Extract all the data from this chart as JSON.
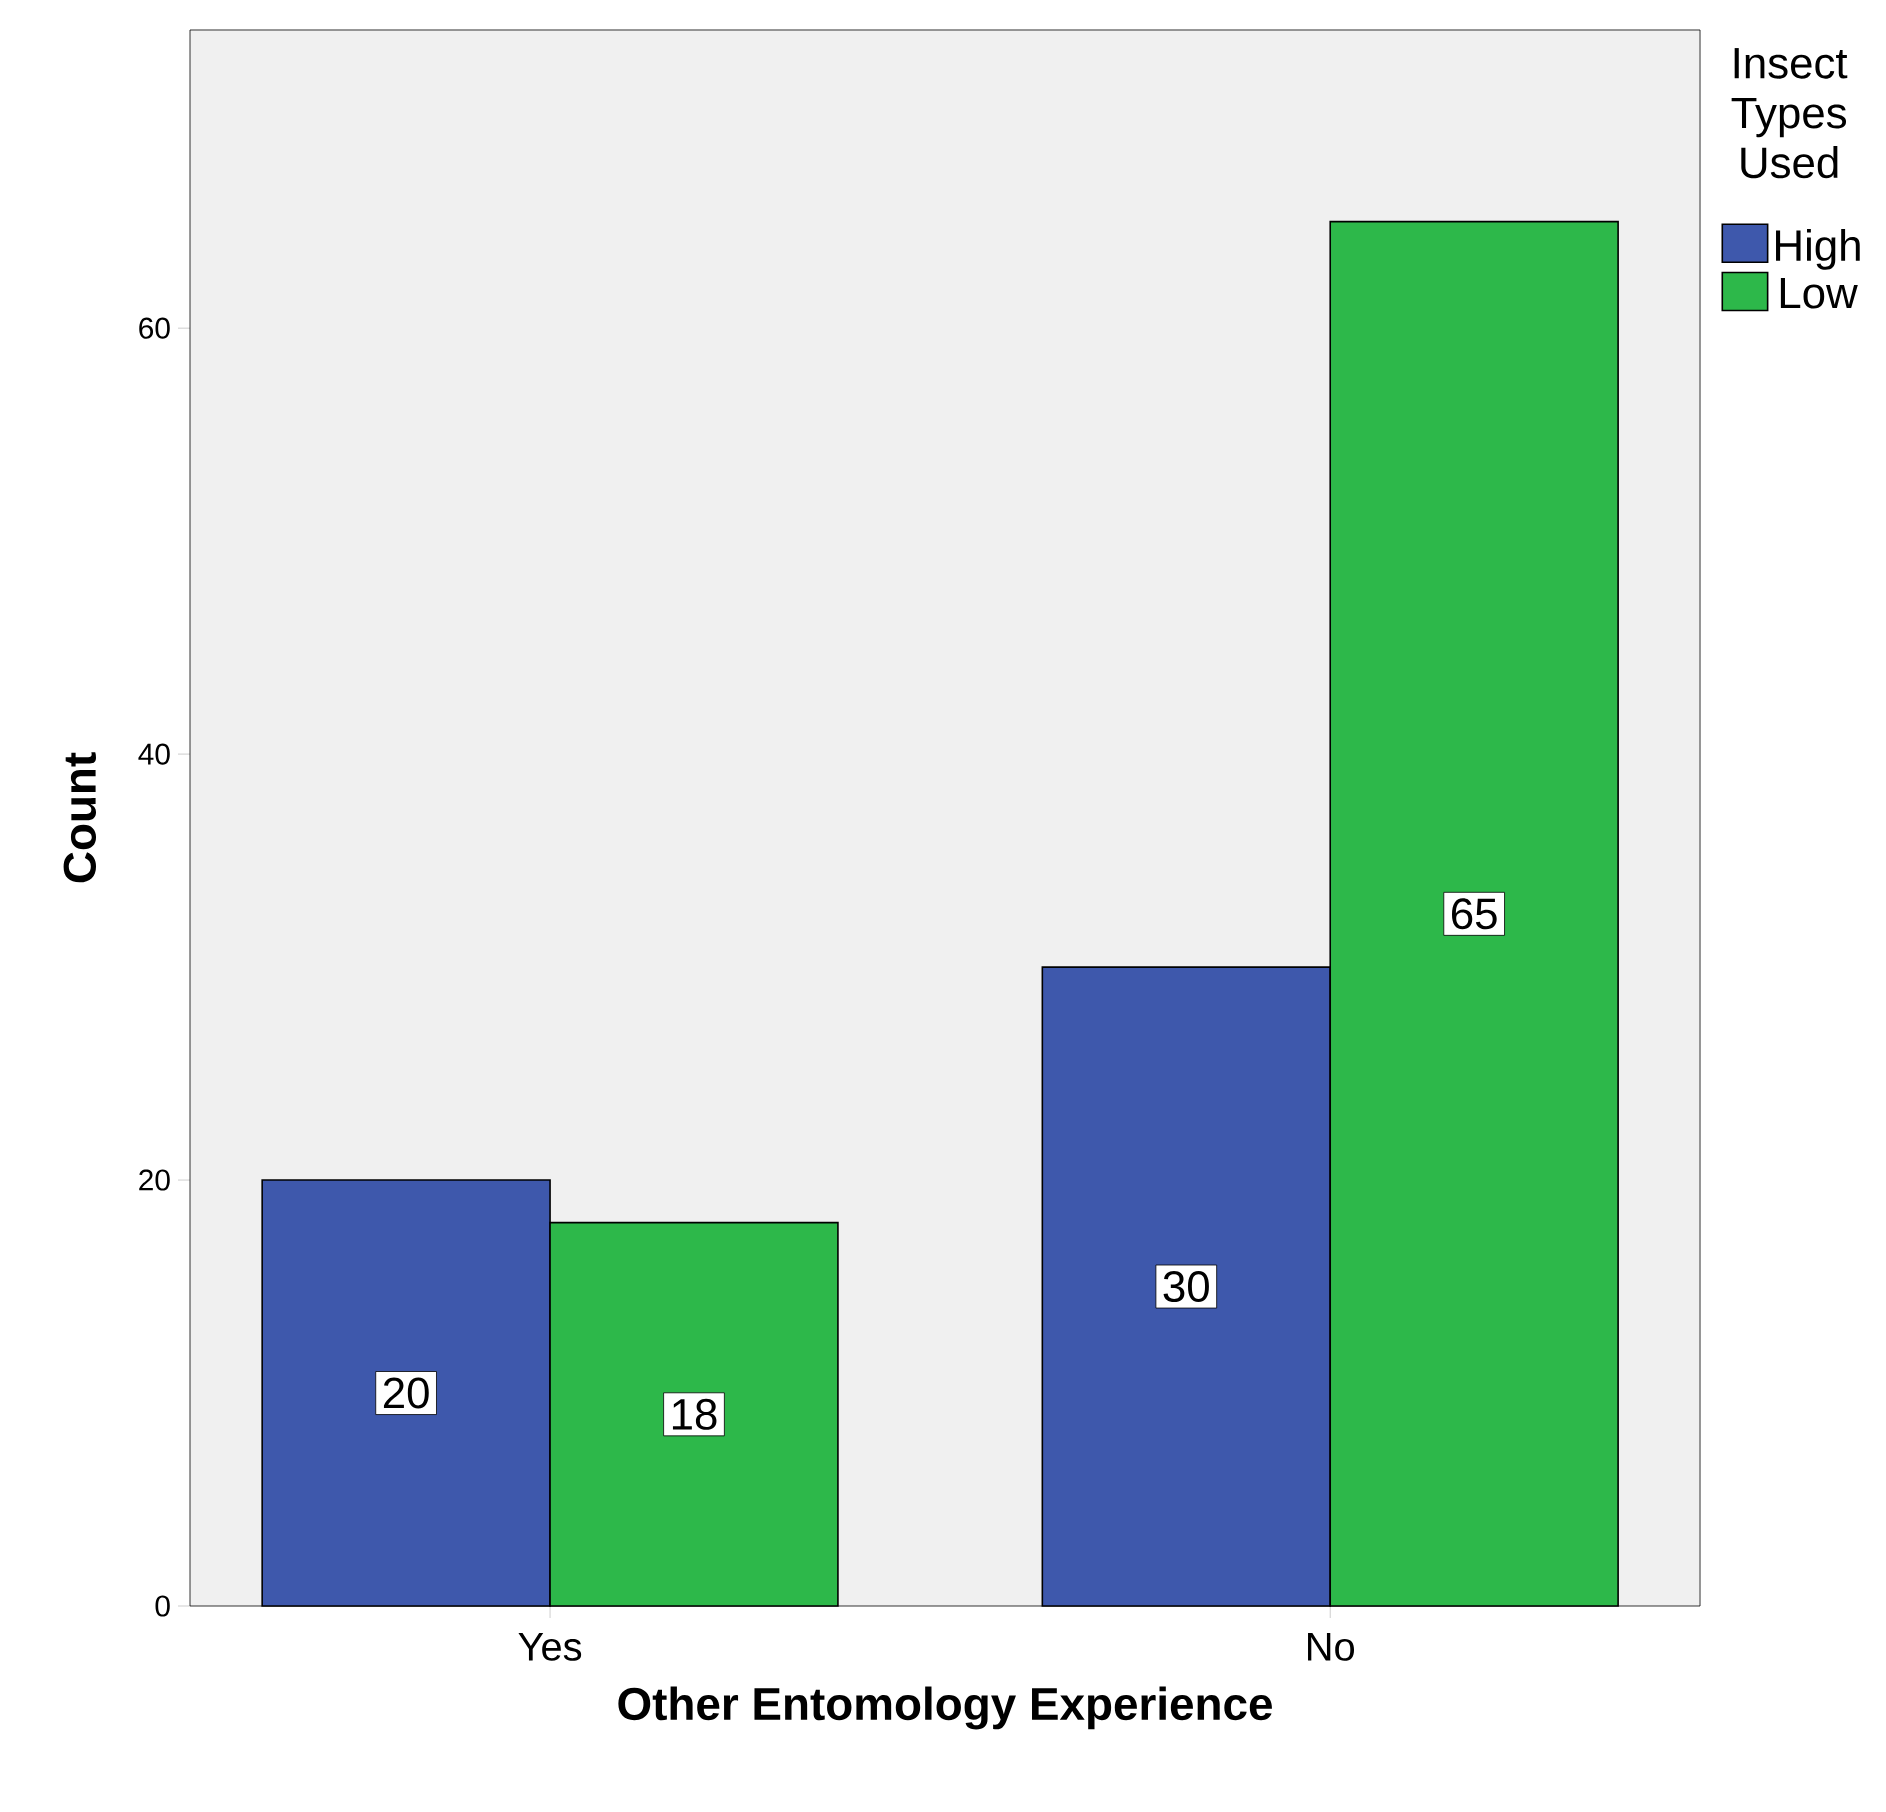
{
  "chart_data": {
    "type": "bar",
    "xlabel": "Other Entomology Experience",
    "ylabel": "Count",
    "legend_title": "Insect Types Used",
    "categories": [
      "Yes",
      "No"
    ],
    "series": [
      {
        "name": "High",
        "color": "#3e58ac",
        "values": [
          20,
          30
        ]
      },
      {
        "name": "Low",
        "color": "#2db84a",
        "values": [
          18,
          65
        ]
      }
    ],
    "ylim": [
      0,
      74
    ],
    "yticks": [
      0,
      20,
      40,
      60
    ],
    "grid": false,
    "legend": "top right",
    "data_labels": true
  }
}
